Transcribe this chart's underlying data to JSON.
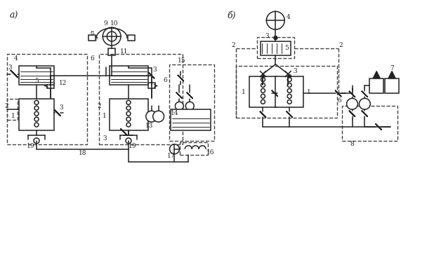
{
  "background": "#ffffff",
  "line_color": "#222222",
  "dash_color": "#444444",
  "figsize": [
    6.18,
    3.61
  ],
  "dpi": 100
}
